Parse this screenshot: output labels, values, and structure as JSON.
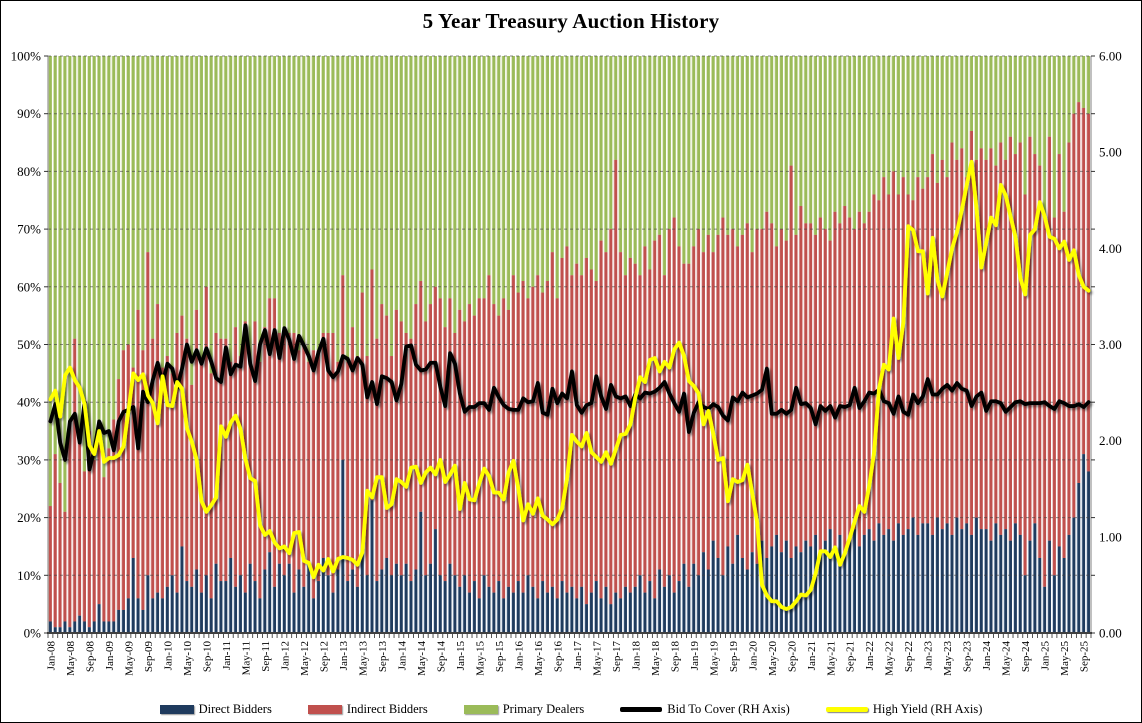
{
  "title": "5 Year Treasury Auction History",
  "legend": {
    "items": [
      {
        "label": "Direct Bidders",
        "type": "bar",
        "color": "#1F3B5E",
        "swatch_style": "width:34px;height:9px;background:#1F3B5E;box-shadow:1px 1px 1px rgba(0,0,0,0.4)"
      },
      {
        "label": "Indirect Bidders",
        "type": "bar",
        "color": "#C0504D",
        "swatch_style": "width:34px;height:9px;background:#C0504D;box-shadow:1px 1px 1px rgba(0,0,0,0.4)"
      },
      {
        "label": "Primary Dealers",
        "type": "bar",
        "color": "#9BBB59",
        "swatch_style": "width:34px;height:9px;background:#9BBB59;box-shadow:1px 1px 1px rgba(0,0,0,0.4)"
      },
      {
        "label": "Bid To Cover (RH Axis)",
        "type": "line",
        "color": "#000000",
        "swatch_style": "width:42px;height:5px;background:#000000;border-radius:2px"
      },
      {
        "label": "High Yield (RH Axis)",
        "type": "line",
        "color": "#FFFF00",
        "swatch_style": "width:42px;height:5px;background:#FFFF00;border-radius:2px;box-shadow:1px 1px 1px rgba(0,0,0,0.5)"
      }
    ]
  },
  "chart_data": {
    "type": "combo_stacked_bar_line",
    "title": "5 Year Treasury Auction History",
    "months": 214,
    "x_start": "Jan-08",
    "x_tick_every": 4,
    "x_tick_labels": [
      "Jan-08",
      "May-08",
      "Sep-08",
      "Jan-09",
      "May-09",
      "Sep-09",
      "Jan-10",
      "May-10",
      "Sep-10",
      "Jan-11",
      "May-11",
      "Sep-11",
      "Jan-12",
      "May-12",
      "Sep-12",
      "Jan-13",
      "May-13",
      "Sep-13",
      "Jan-14",
      "May-14",
      "Sep-14",
      "Jan-15",
      "May-15",
      "Sep-15",
      "Jan-16",
      "May-16",
      "Sep-16",
      "Jan-17",
      "May-17",
      "Sep-17",
      "Jan-18",
      "May-18",
      "Sep-18",
      "Jan-19",
      "May-19",
      "Sep-19",
      "Jan-20",
      "May-20",
      "Sep-20",
      "Jan-21",
      "May-21",
      "Sep-21",
      "Jan-22",
      "May-22",
      "Sep-22",
      "Jan-23",
      "May-23",
      "Sep-23",
      "Jan-24",
      "May-24",
      "Sep-24",
      "Jan-25",
      "May-25",
      "Sep-25"
    ],
    "left_axis": {
      "min": 0,
      "max": 100,
      "step": 10,
      "unit": "%",
      "labels": [
        "0%",
        "10%",
        "20%",
        "30%",
        "40%",
        "50%",
        "60%",
        "70%",
        "80%",
        "90%",
        "100%"
      ]
    },
    "right_axis": {
      "min": 0,
      "max": 6,
      "step": 1,
      "labels": [
        "0.00",
        "1.00",
        "2.00",
        "3.00",
        "4.00",
        "5.00",
        "6.00"
      ]
    },
    "grid": "horizontal-dashed",
    "legend_position": "bottom",
    "bar_series": [
      {
        "name": "Direct Bidders",
        "axis": "left",
        "color": "#1F3B5E",
        "pale": "#B9C7DA",
        "values": [
          2,
          1,
          1,
          2,
          1,
          2,
          3,
          2,
          1,
          2,
          5,
          2,
          2,
          2,
          4,
          4,
          6,
          13,
          6,
          4,
          10,
          6,
          7,
          6,
          8,
          10,
          7,
          15,
          9,
          8,
          11,
          7,
          10,
          6,
          12,
          9,
          9,
          13,
          8,
          10,
          7,
          12,
          9,
          6,
          11,
          14,
          8,
          12,
          10,
          12,
          7,
          11,
          8,
          12,
          6,
          9,
          13,
          10,
          7,
          11,
          30,
          9,
          11,
          8,
          14,
          10,
          23,
          9,
          11,
          13,
          10,
          12,
          10,
          12,
          9,
          11,
          21,
          10,
          12,
          18,
          10,
          9,
          12,
          10,
          8,
          10,
          7,
          9,
          6,
          10,
          8,
          7,
          9,
          6,
          8,
          7,
          9,
          7,
          10,
          8,
          6,
          9,
          7,
          8,
          6,
          9,
          7,
          8,
          6,
          8,
          5,
          7,
          9,
          6,
          8,
          5,
          7,
          6,
          8,
          7,
          8,
          10,
          7,
          9,
          6,
          11,
          8,
          10,
          7,
          9,
          12,
          8,
          12,
          10,
          14,
          11,
          16,
          13,
          10,
          15,
          12,
          17,
          13,
          11,
          14,
          12,
          16,
          13,
          15,
          17,
          14,
          16,
          13,
          15,
          14,
          16,
          15,
          17,
          14,
          16,
          18,
          15,
          17,
          14,
          16,
          18,
          15,
          17,
          18,
          16,
          19,
          17,
          18,
          16,
          19,
          17,
          18,
          20,
          17,
          19,
          19,
          17,
          20,
          18,
          19,
          17,
          20,
          18,
          19,
          17,
          20,
          18,
          18,
          16,
          19,
          17,
          18,
          16,
          19,
          17,
          10,
          16,
          19,
          13,
          8,
          16,
          10,
          15,
          13,
          17,
          20,
          26,
          31,
          28
        ]
      },
      {
        "name": "Indirect Bidders",
        "axis": "left",
        "color": "#C0504D",
        "pale": "#E2B3B1",
        "values": [
          20,
          30,
          25,
          19,
          35,
          49,
          30,
          26,
          34,
          28,
          30,
          25,
          30,
          35,
          40,
          45,
          44,
          33,
          50,
          45,
          56,
          45,
          50,
          40,
          40,
          35,
          45,
          40,
          42,
          35,
          45,
          40,
          50,
          39,
          40,
          42,
          42,
          34,
          45,
          38,
          47,
          35,
          45,
          41,
          42,
          44,
          50,
          40,
          42,
          40,
          45,
          38,
          42,
          35,
          43,
          40,
          39,
          42,
          45,
          36,
          32,
          38,
          42,
          40,
          45,
          38,
          40,
          42,
          46,
          42,
          38,
          44,
          44,
          40,
          42,
          46,
          40,
          44,
          45,
          42,
          48,
          44,
          46,
          42,
          48,
          44,
          50,
          46,
          52,
          48,
          54,
          50,
          46,
          52,
          48,
          55,
          50,
          54,
          48,
          52,
          56,
          50,
          54,
          58,
          52,
          56,
          60,
          54,
          58,
          54,
          60,
          56,
          52,
          62,
          58,
          65,
          75,
          60,
          54,
          58,
          56,
          52,
          60,
          54,
          62,
          58,
          54,
          60,
          65,
          58,
          52,
          56,
          55,
          60,
          52,
          58,
          50,
          56,
          62,
          54,
          58,
          50,
          56,
          60,
          52,
          58,
          54,
          60,
          56,
          50,
          56,
          52,
          68,
          54,
          60,
          55,
          56,
          52,
          58,
          54,
          50,
          58,
          54,
          60,
          56,
          52,
          58,
          54,
          55,
          60,
          56,
          62,
          58,
          64,
          57,
          62,
          58,
          55,
          62,
          58,
          60,
          66,
          58,
          64,
          60,
          68,
          62,
          66,
          60,
          70,
          62,
          66,
          64,
          68,
          62,
          68,
          64,
          70,
          64,
          68,
          66,
          70,
          64,
          68,
          64,
          70,
          62,
          68,
          60,
          68,
          70,
          66,
          60,
          62
        ]
      },
      {
        "name": "Primary Dealers",
        "axis": "left",
        "color": "#9BBB59",
        "pale": "#D5E0B3",
        "values": "remainder_to_100"
      }
    ],
    "line_series": [
      {
        "name": "Bid To Cover (RH Axis)",
        "axis": "right",
        "color": "#000000",
        "values": [
          2.2,
          2.38,
          1.98,
          1.8,
          2.2,
          2.28,
          1.98,
          2.4,
          1.7,
          1.9,
          2.2,
          2.08,
          2.1,
          1.9,
          2.2,
          2.3,
          2.32,
          2.35,
          1.92,
          2.51,
          2.4,
          2.63,
          2.81,
          2.6,
          2.8,
          2.75,
          2.55,
          2.75,
          3.0,
          2.82,
          2.94,
          2.8,
          2.96,
          2.82,
          2.65,
          2.61,
          2.97,
          2.69,
          2.79,
          2.77,
          3.2,
          2.8,
          2.62,
          3.0,
          3.15,
          2.9,
          3.15,
          2.86,
          3.17,
          3.05,
          2.85,
          3.09,
          2.99,
          2.88,
          2.73,
          2.92,
          3.06,
          2.73,
          2.66,
          2.72,
          2.88,
          2.85,
          2.73,
          2.86,
          2.79,
          2.45,
          2.61,
          2.38,
          2.67,
          2.65,
          2.61,
          2.42,
          2.59,
          2.98,
          2.99,
          2.79,
          2.73,
          2.74,
          2.81,
          2.81,
          2.56,
          2.36,
          2.91,
          2.8,
          2.49,
          2.3,
          2.35,
          2.35,
          2.39,
          2.39,
          2.32,
          2.55,
          2.45,
          2.37,
          2.33,
          2.32,
          2.32,
          2.44,
          2.4,
          2.41,
          2.6,
          2.29,
          2.27,
          2.54,
          2.39,
          2.49,
          2.44,
          2.72,
          2.37,
          2.29,
          2.37,
          2.39,
          2.67,
          2.46,
          2.33,
          2.58,
          2.46,
          2.44,
          2.46,
          2.36,
          2.48,
          2.44,
          2.5,
          2.49,
          2.51,
          2.55,
          2.61,
          2.49,
          2.39,
          2.3,
          2.49,
          2.09,
          2.29,
          2.4,
          2.35,
          2.33,
          2.38,
          2.35,
          2.26,
          2.21,
          2.45,
          2.41,
          2.5,
          2.45,
          2.47,
          2.49,
          2.53,
          2.75,
          2.28,
          2.28,
          2.32,
          2.28,
          2.32,
          2.55,
          2.38,
          2.39,
          2.34,
          2.17,
          2.36,
          2.31,
          2.36,
          2.24,
          2.36,
          2.35,
          2.37,
          2.55,
          2.34,
          2.41,
          2.5,
          2.49,
          2.53,
          2.41,
          2.39,
          2.28,
          2.46,
          2.3,
          2.27,
          2.48,
          2.39,
          2.46,
          2.64,
          2.48,
          2.48,
          2.54,
          2.58,
          2.52,
          2.6,
          2.54,
          2.52,
          2.36,
          2.46,
          2.5,
          2.31,
          2.41,
          2.41,
          2.39,
          2.3,
          2.35,
          2.4,
          2.41,
          2.38,
          2.39,
          2.39,
          2.39,
          2.4,
          2.36,
          2.33,
          2.41,
          2.39,
          2.36,
          2.36,
          2.38,
          2.35,
          2.4
        ]
      },
      {
        "name": "High Yield (RH Axis)",
        "axis": "right",
        "color": "#FFFF00",
        "values": [
          2.43,
          2.52,
          2.25,
          2.68,
          2.76,
          2.63,
          2.55,
          2.38,
          1.95,
          1.86,
          2.1,
          1.78,
          1.82,
          1.82,
          1.85,
          1.94,
          2.31,
          2.7,
          2.63,
          2.69,
          2.47,
          2.39,
          2.18,
          2.67,
          2.37,
          2.36,
          2.61,
          2.54,
          2.13,
          1.99,
          1.8,
          1.37,
          1.26,
          1.33,
          1.41,
          2.15,
          2.04,
          2.19,
          2.26,
          2.12,
          1.81,
          1.61,
          1.58,
          1.12,
          1.02,
          1.06,
          0.94,
          0.88,
          0.9,
          0.83,
          1.04,
          1.05,
          0.75,
          0.73,
          0.58,
          0.71,
          0.65,
          0.77,
          0.64,
          0.77,
          0.79,
          0.78,
          0.76,
          0.71,
          0.84,
          1.48,
          1.41,
          1.62,
          1.62,
          1.3,
          1.34,
          1.6,
          1.57,
          1.52,
          1.72,
          1.73,
          1.56,
          1.67,
          1.72,
          1.65,
          1.8,
          1.57,
          1.65,
          1.74,
          1.29,
          1.56,
          1.39,
          1.38,
          1.56,
          1.71,
          1.63,
          1.46,
          1.46,
          1.39,
          1.67,
          1.79,
          1.5,
          1.17,
          1.34,
          1.24,
          1.4,
          1.22,
          1.18,
          1.13,
          1.18,
          1.3,
          1.61,
          2.06,
          1.99,
          1.94,
          2.08,
          1.88,
          1.83,
          1.78,
          1.88,
          1.76,
          1.91,
          2.06,
          2.07,
          2.17,
          2.45,
          2.66,
          2.61,
          2.84,
          2.86,
          2.72,
          2.82,
          2.76,
          2.95,
          3.02,
          2.88,
          2.62,
          2.57,
          2.49,
          2.17,
          2.31,
          2.07,
          1.8,
          1.82,
          1.37,
          1.6,
          1.57,
          1.59,
          1.75,
          1.45,
          1.15,
          0.5,
          0.39,
          0.33,
          0.33,
          0.27,
          0.25,
          0.27,
          0.33,
          0.4,
          0.39,
          0.45,
          0.62,
          0.85,
          0.85,
          0.79,
          0.89,
          0.71,
          0.83,
          0.99,
          1.16,
          1.32,
          1.26,
          1.53,
          1.88,
          2.54,
          2.79,
          2.74,
          3.27,
          2.86,
          3.23,
          4.23,
          4.19,
          3.97,
          3.97,
          3.53,
          4.11,
          3.67,
          3.5,
          3.75,
          4.0,
          4.17,
          4.4,
          4.66,
          4.9,
          4.42,
          3.8,
          4.06,
          4.32,
          4.24,
          4.66,
          4.55,
          4.33,
          4.12,
          3.69,
          3.52,
          4.14,
          4.2,
          4.48,
          4.33,
          4.12,
          4.1,
          4.0,
          4.07,
          3.88,
          3.98,
          3.72,
          3.6,
          3.56
        ]
      }
    ]
  }
}
